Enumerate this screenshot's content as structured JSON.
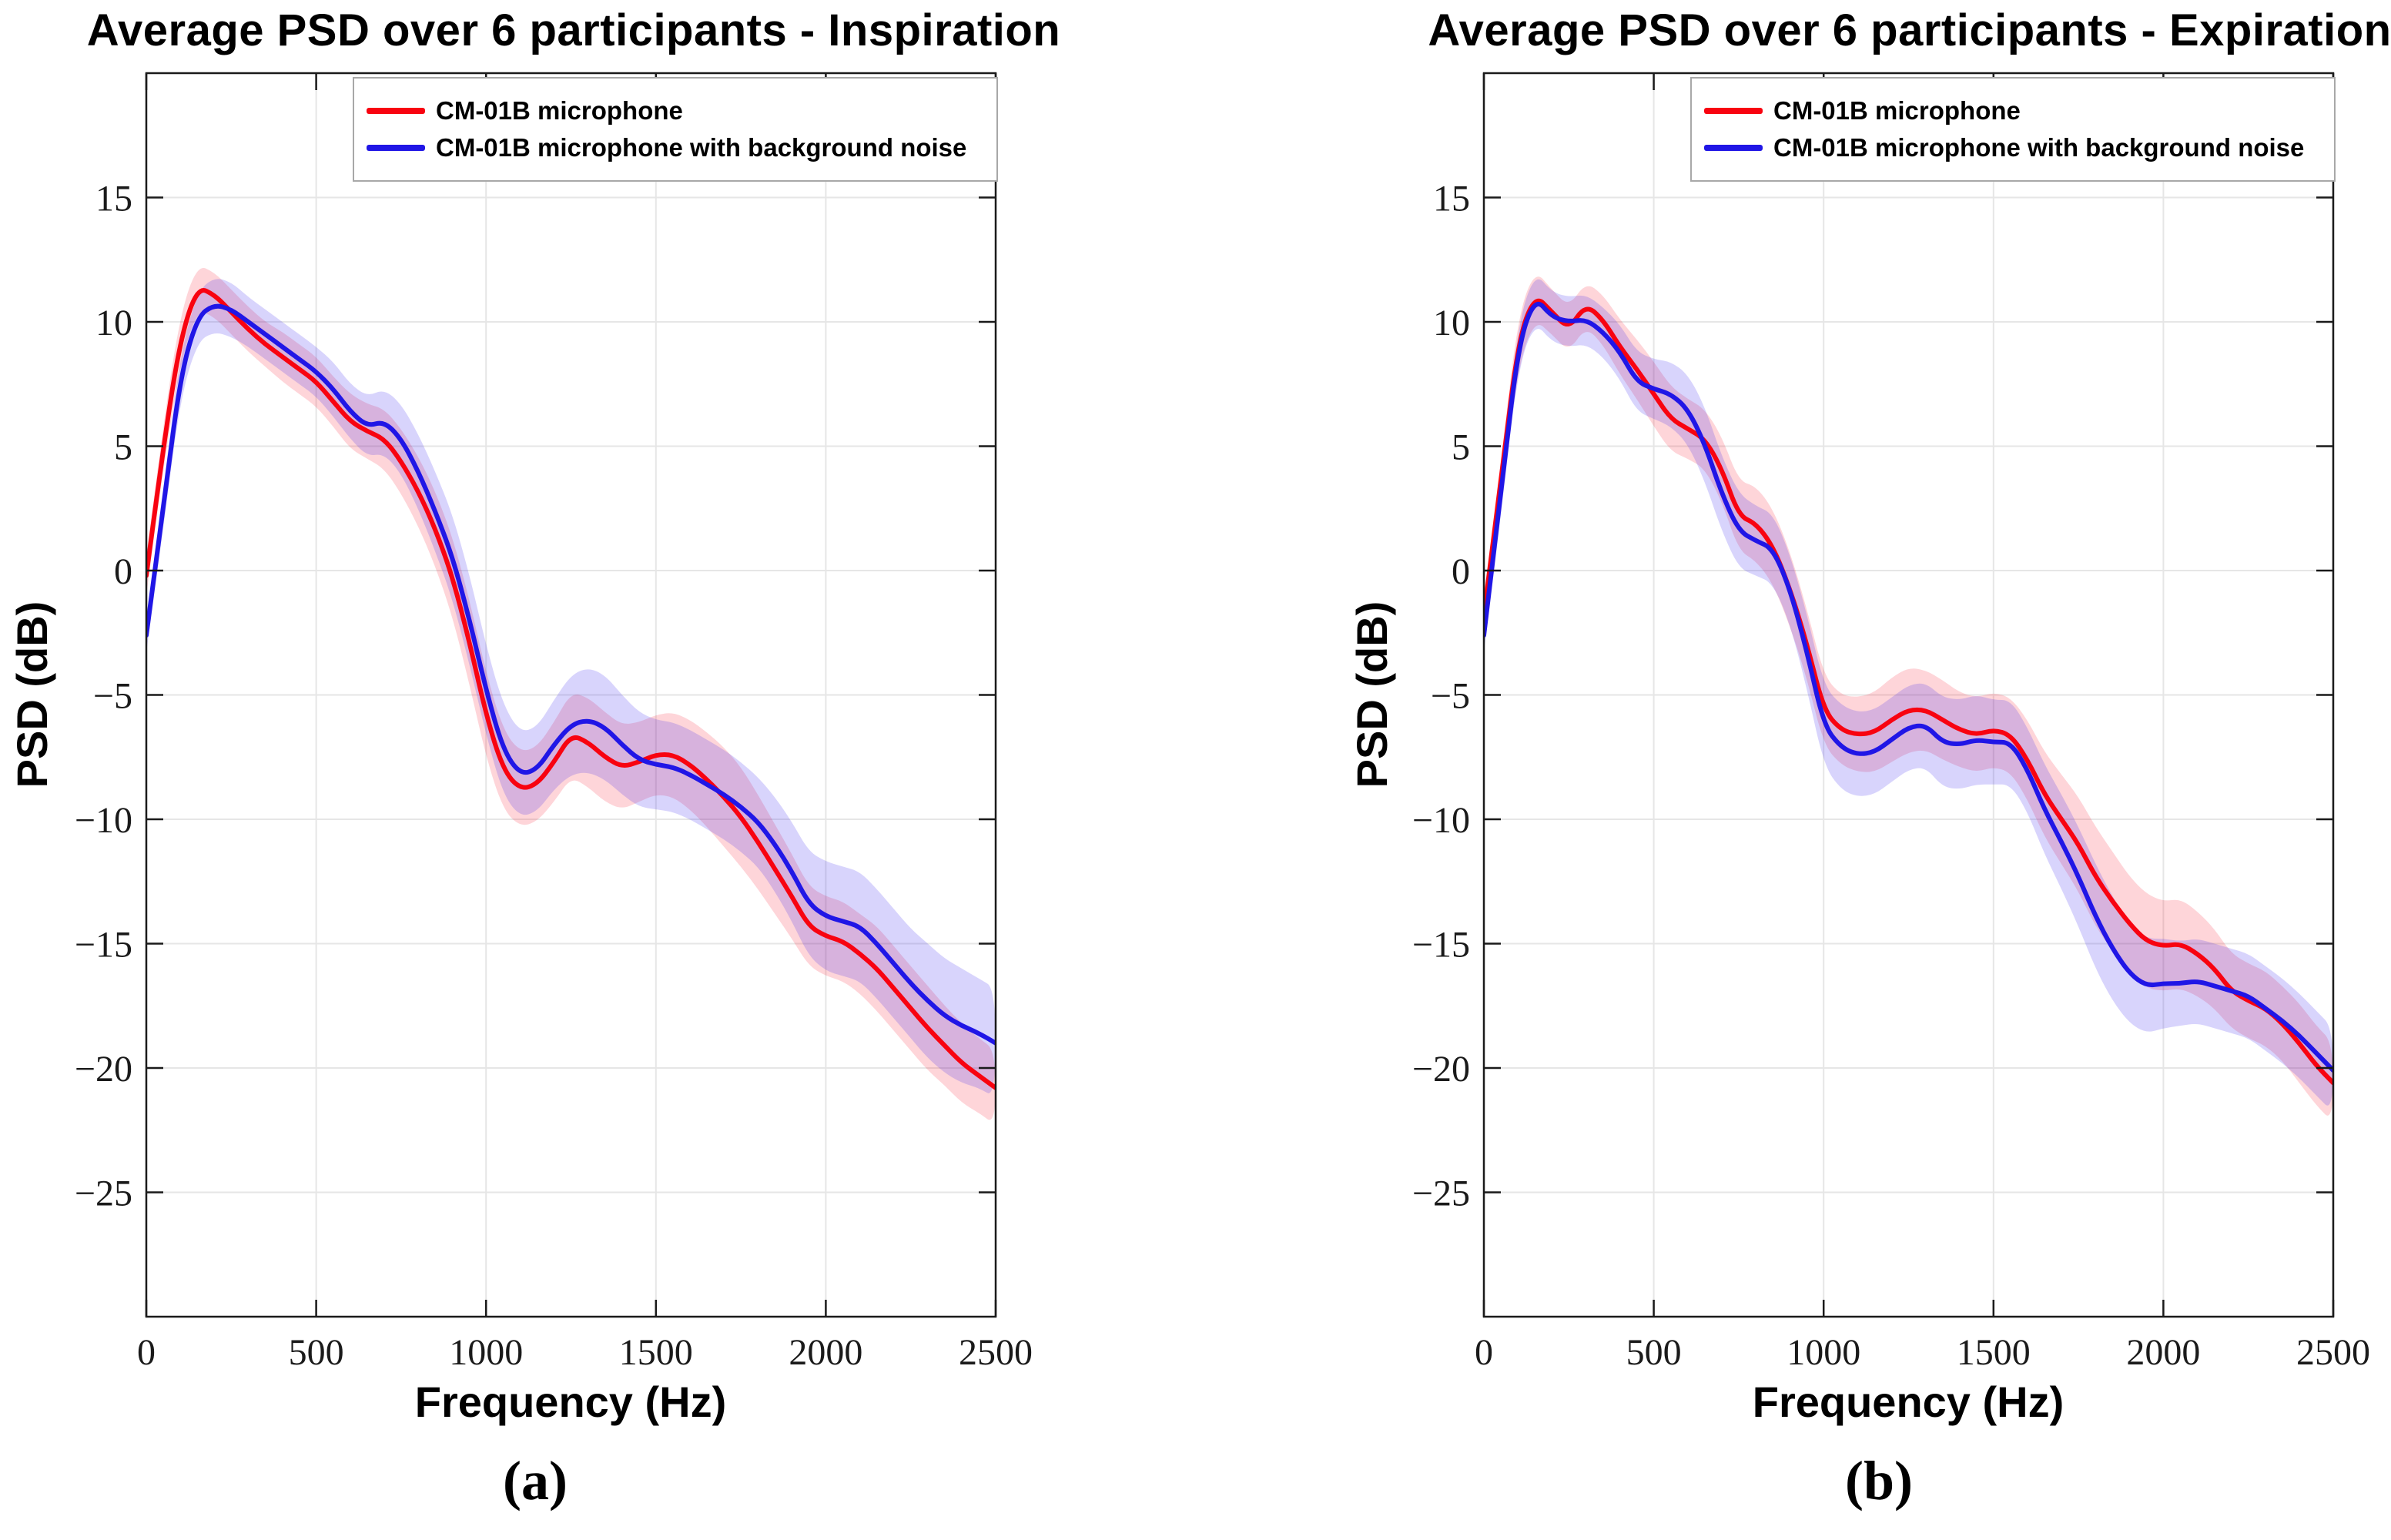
{
  "page": {
    "background": "#ffffff"
  },
  "chart_data": [
    {
      "type": "line",
      "panel": "left",
      "caption": "(a)",
      "title": "Average PSD over 6 participants - Inspiration",
      "xlabel": "Frequency (Hz)",
      "ylabel": "PSD (dB)",
      "xlim": [
        0,
        2500
      ],
      "ylim": [
        -30,
        20
      ],
      "xticks": [
        0,
        500,
        1000,
        1500,
        2000,
        2500
      ],
      "yticks": [
        15,
        10,
        5,
        0,
        -5,
        -10,
        -15,
        -20,
        -25
      ],
      "grid": true,
      "legend_position": "top-right-inside",
      "x_start": 0,
      "x_step": 50,
      "series": [
        {
          "name": "CM-01B microphone",
          "color": "#f80310",
          "band_color": "rgba(250,20,45,0.18)",
          "values": [
            -0.2,
            5.0,
            9.3,
            11.4,
            11.1,
            10.4,
            9.7,
            9.1,
            8.6,
            8.1,
            7.6,
            6.8,
            6.0,
            5.6,
            5.3,
            4.4,
            3.2,
            1.7,
            -0.2,
            -2.8,
            -5.8,
            -8.0,
            -8.8,
            -8.6,
            -7.7,
            -6.6,
            -6.9,
            -7.5,
            -7.9,
            -7.7,
            -7.4,
            -7.4,
            -7.8,
            -8.4,
            -9.1,
            -9.9,
            -10.9,
            -12.0,
            -13.1,
            -14.3,
            -14.7,
            -14.9,
            -15.4,
            -16.0,
            -16.8,
            -17.6,
            -18.4,
            -19.1,
            -19.8,
            -20.3,
            -20.8
          ],
          "band_halfwidth": [
            0.8,
            0.9,
            1.0,
            0.9,
            0.9,
            0.9,
            0.9,
            0.9,
            1.0,
            1.0,
            1.0,
            1.0,
            1.1,
            1.1,
            1.2,
            1.3,
            1.4,
            1.5,
            1.6,
            1.7,
            1.7,
            1.6,
            1.5,
            1.5,
            1.6,
            1.7,
            1.8,
            1.8,
            1.7,
            1.6,
            1.6,
            1.7,
            1.8,
            1.9,
            2.0,
            2.0,
            1.9,
            1.8,
            1.7,
            1.6,
            1.6,
            1.6,
            1.6,
            1.7,
            1.7,
            1.7,
            1.7,
            1.6,
            1.6,
            1.5,
            1.5
          ]
        },
        {
          "name": "CM-01B microphone with background noise",
          "color": "#2016e6",
          "band_color": "rgba(60,40,240,0.20)",
          "values": [
            -2.6,
            2.5,
            7.8,
            10.2,
            10.7,
            10.5,
            10.0,
            9.5,
            9.0,
            8.5,
            8.0,
            7.3,
            6.4,
            5.8,
            6.0,
            5.3,
            4.0,
            2.4,
            0.6,
            -1.9,
            -4.8,
            -7.2,
            -8.2,
            -8.0,
            -7.0,
            -6.2,
            -6.0,
            -6.3,
            -7.0,
            -7.6,
            -7.8,
            -7.9,
            -8.2,
            -8.6,
            -9.0,
            -9.5,
            -10.1,
            -11.0,
            -12.1,
            -13.4,
            -13.9,
            -14.1,
            -14.3,
            -15.0,
            -15.8,
            -16.6,
            -17.3,
            -17.9,
            -18.3,
            -18.6,
            -19.0
          ],
          "band_halfwidth": [
            0.7,
            0.8,
            0.9,
            1.0,
            1.1,
            1.1,
            1.0,
            1.0,
            1.0,
            1.0,
            1.0,
            1.1,
            1.1,
            1.2,
            1.3,
            1.4,
            1.5,
            1.6,
            1.7,
            1.8,
            1.8,
            1.8,
            1.7,
            1.7,
            1.8,
            2.0,
            2.1,
            2.1,
            2.0,
            1.9,
            1.8,
            1.8,
            1.8,
            1.8,
            1.8,
            1.8,
            1.8,
            1.9,
            2.0,
            2.1,
            2.2,
            2.2,
            2.2,
            2.2,
            2.2,
            2.2,
            2.3,
            2.3,
            2.3,
            2.2,
            2.2
          ]
        }
      ]
    },
    {
      "type": "line",
      "panel": "right",
      "caption": "(b)",
      "title": "Average PSD over 6 participants - Expiration",
      "xlabel": "Frequency (Hz)",
      "ylabel": "PSD (dB)",
      "xlim": [
        0,
        2500
      ],
      "ylim": [
        -30,
        20
      ],
      "xticks": [
        0,
        500,
        1000,
        1500,
        2000,
        2500
      ],
      "yticks": [
        15,
        10,
        5,
        0,
        -5,
        -10,
        -15,
        -20,
        -25
      ],
      "grid": true,
      "legend_position": "top-right-inside",
      "x_start": 0,
      "x_step": 50,
      "series": [
        {
          "name": "CM-01B microphone",
          "color": "#f80310",
          "band_color": "rgba(250,20,45,0.18)",
          "values": [
            -1.8,
            3.5,
            9.2,
            11.1,
            10.4,
            9.7,
            10.7,
            10.1,
            9.0,
            8.1,
            7.1,
            6.1,
            5.7,
            5.3,
            4.1,
            2.2,
            1.9,
            1.0,
            -0.7,
            -2.9,
            -5.6,
            -6.4,
            -6.6,
            -6.5,
            -6.0,
            -5.6,
            -5.6,
            -6.0,
            -6.4,
            -6.6,
            -6.4,
            -6.6,
            -7.6,
            -9.0,
            -10.0,
            -11.0,
            -12.3,
            -13.3,
            -14.2,
            -14.9,
            -15.1,
            -15.0,
            -15.4,
            -16.0,
            -16.9,
            -17.3,
            -17.6,
            -18.2,
            -19.0,
            -19.9,
            -20.6
          ],
          "band_halfwidth": [
            0.8,
            0.9,
            1.0,
            1.0,
            0.9,
            0.9,
            0.9,
            1.0,
            1.1,
            1.2,
            1.3,
            1.3,
            1.2,
            1.2,
            1.3,
            1.4,
            1.5,
            1.5,
            1.5,
            1.4,
            1.4,
            1.4,
            1.5,
            1.6,
            1.7,
            1.7,
            1.6,
            1.6,
            1.5,
            1.5,
            1.5,
            1.5,
            1.6,
            1.7,
            1.8,
            1.9,
            2.0,
            2.0,
            1.9,
            1.9,
            1.8,
            1.8,
            1.7,
            1.6,
            1.5,
            1.5,
            1.5,
            1.5,
            1.6,
            1.6,
            1.6
          ]
        },
        {
          "name": "CM-01B microphone with background noise",
          "color": "#2016e6",
          "band_color": "rgba(60,40,240,0.20)",
          "values": [
            -2.6,
            3.0,
            9.0,
            11.0,
            10.2,
            10.0,
            10.1,
            9.6,
            8.8,
            7.6,
            7.3,
            7.1,
            6.5,
            5.1,
            3.1,
            1.6,
            1.2,
            0.9,
            -0.7,
            -3.2,
            -6.2,
            -7.1,
            -7.4,
            -7.3,
            -6.8,
            -6.3,
            -6.2,
            -6.9,
            -7.0,
            -6.8,
            -6.9,
            -6.9,
            -8.0,
            -9.6,
            -10.9,
            -12.3,
            -13.9,
            -15.2,
            -16.2,
            -16.7,
            -16.6,
            -16.6,
            -16.5,
            -16.7,
            -16.9,
            -17.1,
            -17.6,
            -18.1,
            -18.7,
            -19.4,
            -20.1
          ],
          "band_halfwidth": [
            0.7,
            0.8,
            0.9,
            1.0,
            1.0,
            1.0,
            1.0,
            1.0,
            1.1,
            1.2,
            1.2,
            1.3,
            1.4,
            1.5,
            1.5,
            1.5,
            1.4,
            1.4,
            1.4,
            1.5,
            1.6,
            1.7,
            1.7,
            1.7,
            1.7,
            1.7,
            1.7,
            1.8,
            1.8,
            1.8,
            1.7,
            1.7,
            1.7,
            1.8,
            1.9,
            2.0,
            2.1,
            2.1,
            2.0,
            1.9,
            1.8,
            1.7,
            1.7,
            1.7,
            1.7,
            1.7,
            1.7,
            1.7,
            1.7,
            1.7,
            1.7
          ]
        }
      ]
    }
  ]
}
